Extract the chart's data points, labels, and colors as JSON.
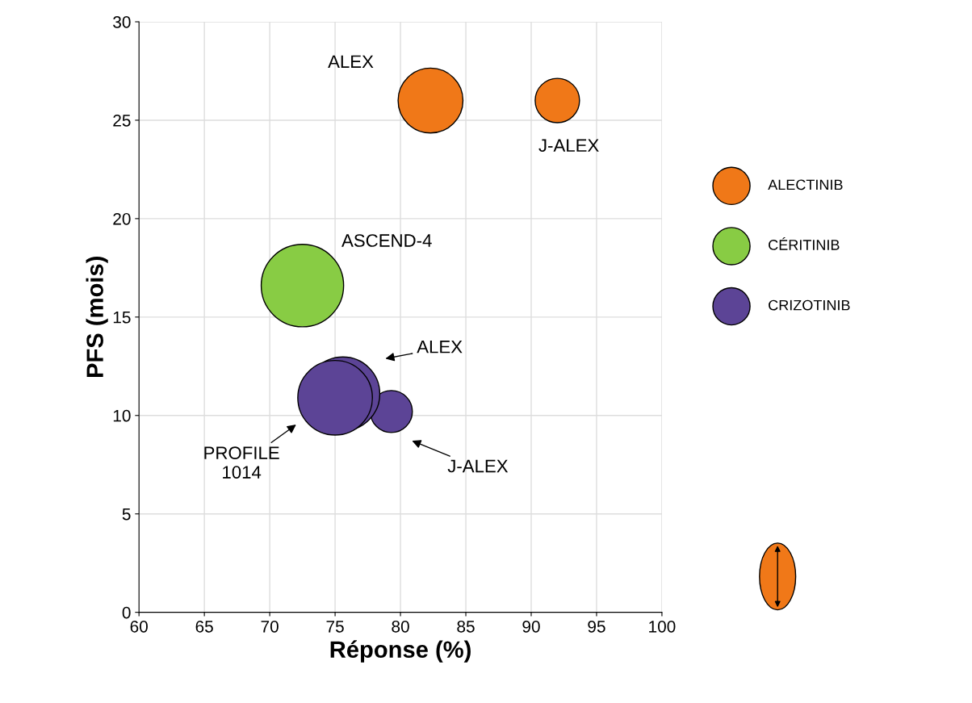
{
  "chart_data": {
    "type": "bubble",
    "xlabel": "Réponse (%)",
    "ylabel": "PFS (mois)",
    "series": [
      {
        "name": "ALECTINIB",
        "color": "#f07818",
        "x": [
          82.3,
          92.0
        ],
        "values": [
          26.0,
          26.0
        ],
        "sizes": [
          0.62,
          0.29
        ]
      },
      {
        "name": "CÉRITINIB",
        "color": "#88cc44",
        "x": [
          72.5
        ],
        "values": [
          16.6
        ],
        "sizes": [
          1
        ]
      },
      {
        "name": "CRIZOTINIB",
        "color": "#5c4496",
        "x": [
          79.3,
          75.6,
          75.0
        ],
        "values": [
          10.2,
          11.1,
          10.9
        ],
        "sizes": [
          0.26,
          0.8,
          0.82
        ]
      }
    ],
    "annotations": [
      "ALEX",
      "J-ALEX",
      "ASCEND-4",
      "ALEX",
      "PROFILE\n1014",
      "J-ALEX"
    ],
    "xlim": [
      60,
      100
    ],
    "xticks": [
      60,
      65,
      70,
      75,
      80,
      85,
      90,
      95,
      100
    ],
    "ylim": [
      0,
      30
    ],
    "yticks": [
      0,
      5,
      10,
      15,
      20,
      25,
      30
    ],
    "grid": true,
    "legend": "right"
  }
}
